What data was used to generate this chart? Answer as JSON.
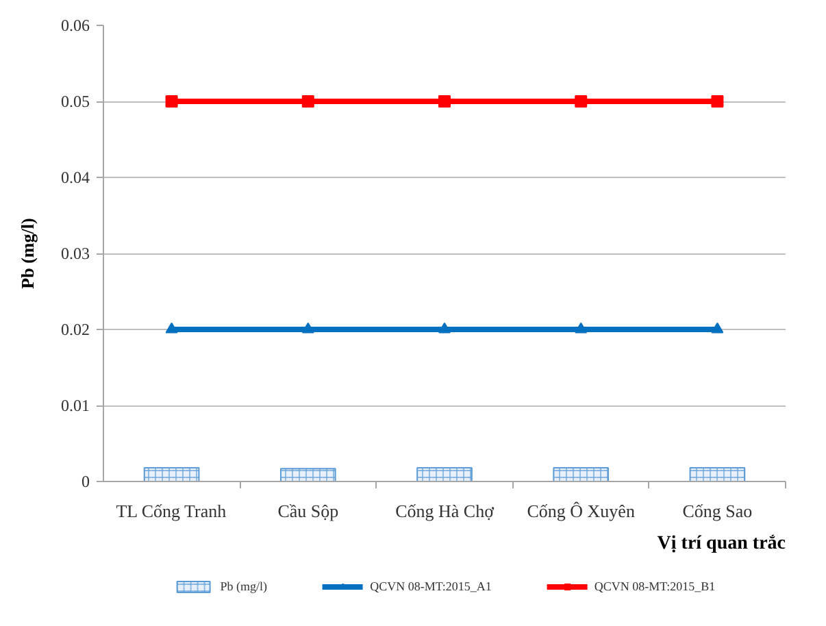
{
  "chart_data": {
    "type": "bar",
    "xlabel": "Vị trí quan trắc",
    "ylabel": "Pb (mg/l)",
    "categories": [
      "TL Cống Tranh",
      "Cầu Sộp",
      "Cống Hà Chợ",
      "Cống Ô Xuyên",
      "Cống Sao"
    ],
    "series": [
      {
        "name": "Pb (mg/l)",
        "color": "#5b9bd5",
        "values": [
          0.0018,
          0.0017,
          0.0018,
          0.0018,
          0.0018
        ]
      },
      {
        "name": "QCVN 08-MT:2015_A1",
        "type": "line",
        "color": "#0070c0",
        "marker": "triangle",
        "values": [
          0.02,
          0.02,
          0.02,
          0.02,
          0.02
        ]
      },
      {
        "name": "QCVN 08-MT:2015_B1",
        "type": "line",
        "color": "#ff0000",
        "marker": "square",
        "values": [
          0.05,
          0.05,
          0.05,
          0.05,
          0.05
        ]
      }
    ],
    "ylim": [
      0,
      0.06
    ],
    "yticks": [
      0,
      0.01,
      0.02,
      0.03,
      0.04,
      0.05,
      0.06
    ],
    "grid": "y",
    "legend": "bottom",
    "line_style": "solid"
  }
}
